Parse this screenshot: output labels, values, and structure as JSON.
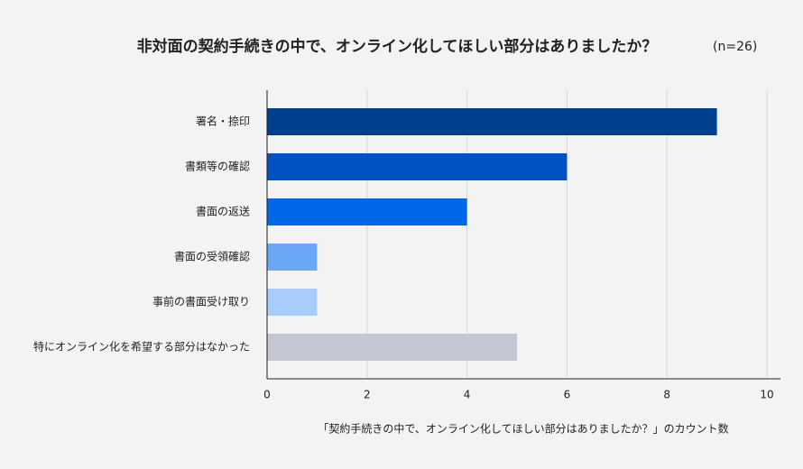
{
  "chart_data": {
    "type": "bar",
    "orientation": "horizontal",
    "title": "非対面の契約手続きの中で、オンライン化してほしい部分はありましたか？",
    "subtitle": "(n=26)",
    "x_label": "「契約手続きの中で、オンライン化してほしい部分はありましたか？」のカウント数",
    "categories": [
      "署名・捺印",
      "書類等の確認",
      "書面の返送",
      "書面の受領確認",
      "事前の書面受け取り",
      "特にオンライン化を希望する部分はなかった"
    ],
    "values": [
      9,
      6,
      4,
      1,
      1,
      5
    ],
    "colors": [
      "#003f8f",
      "#0052c2",
      "#0068e8",
      "#6aa8f7",
      "#a8cdfb",
      "#c4c7d3"
    ],
    "xlim": [
      0,
      10
    ],
    "xticks": [
      0,
      2,
      4,
      6,
      8,
      10
    ],
    "grid": true
  }
}
